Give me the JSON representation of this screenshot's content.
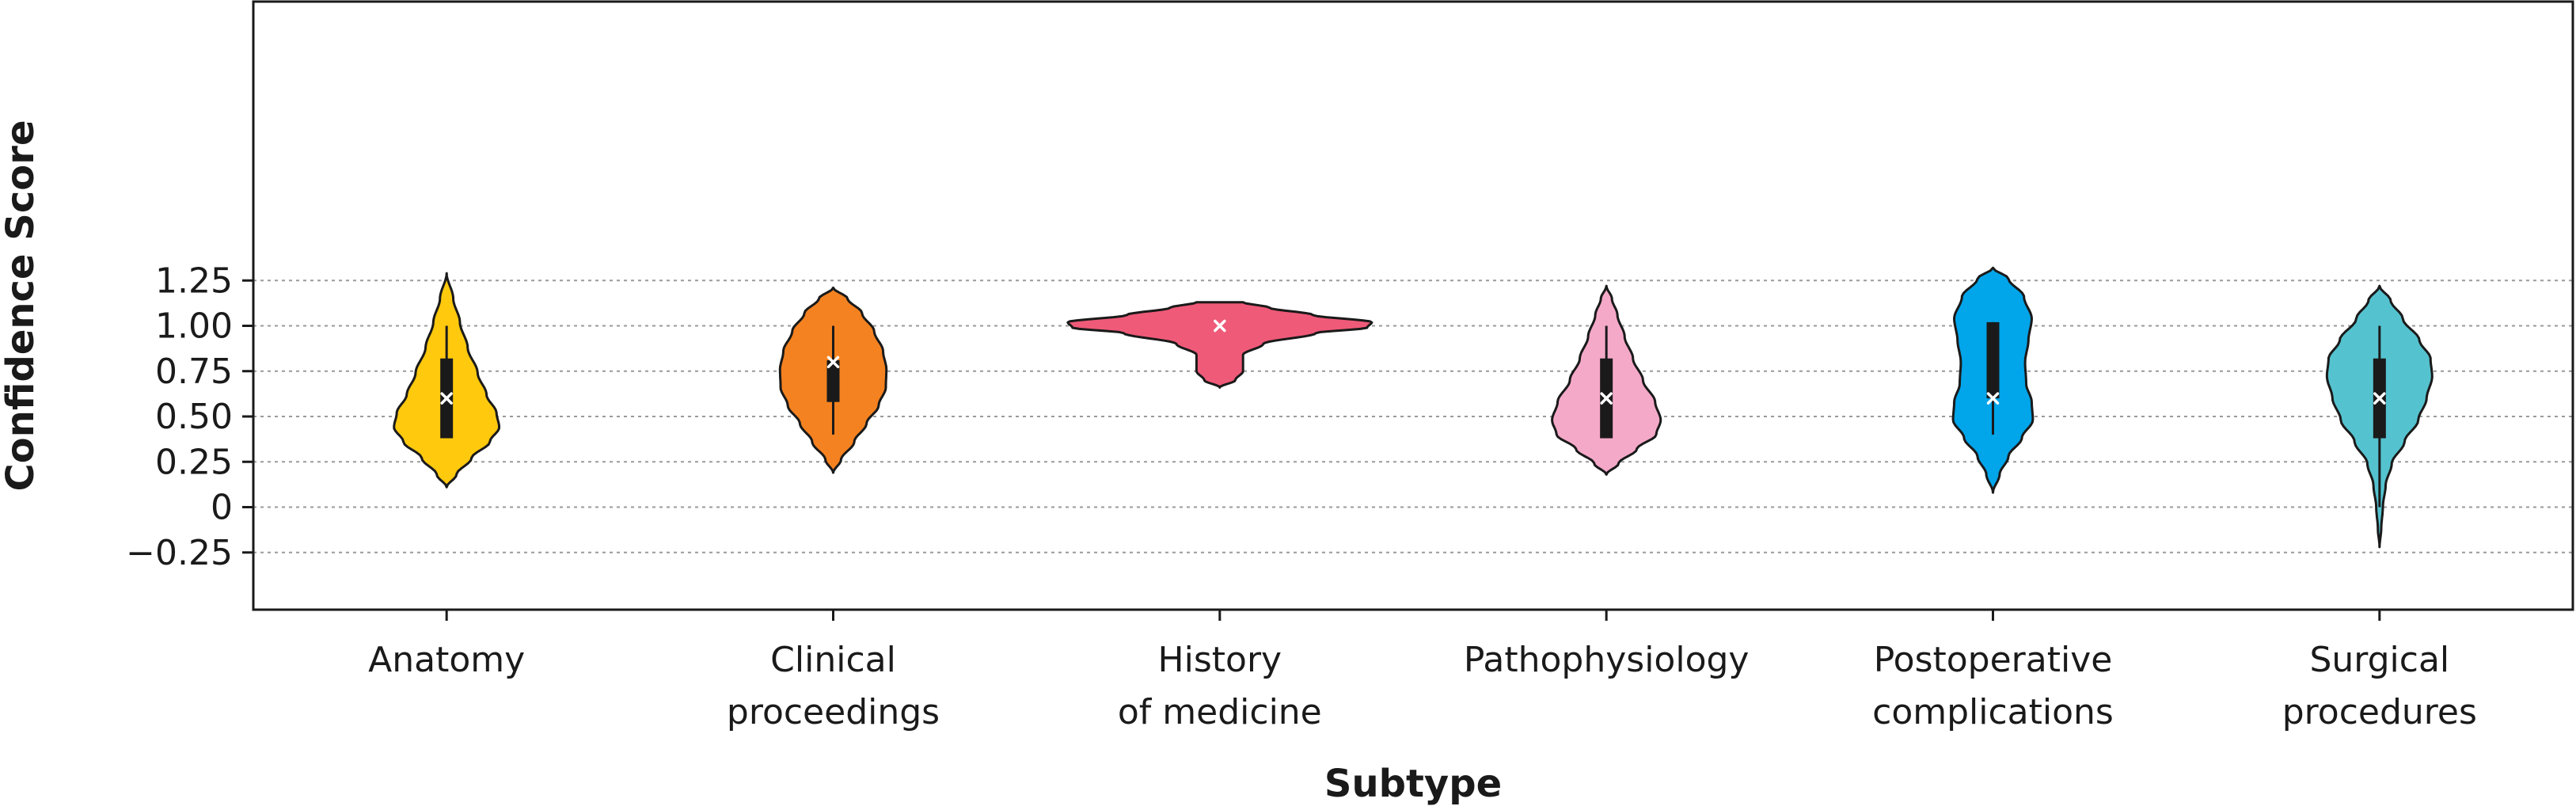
{
  "chart_data": {
    "type": "violin",
    "xlabel": "Subtype",
    "ylabel": "Confidence Score",
    "ylim": [
      -0.28,
      1.38
    ],
    "yticks": [
      -0.25,
      0,
      0.25,
      0.5,
      0.75,
      1.0,
      1.25
    ],
    "ytick_labels": [
      "−0.25",
      "0",
      "0.25",
      "0.50",
      "0.75",
      "1.00",
      "1.25"
    ],
    "grid": "horizontal dashed",
    "categories": [
      {
        "label_lines": [
          "Anatomy"
        ],
        "color": "#FFC90E",
        "kde_min": 0.11,
        "kde_max": 1.29,
        "density": [
          [
            0.11,
            0.0
          ],
          [
            0.18,
            0.18
          ],
          [
            0.27,
            0.45
          ],
          [
            0.36,
            0.78
          ],
          [
            0.44,
            0.95
          ],
          [
            0.52,
            0.9
          ],
          [
            0.62,
            0.72
          ],
          [
            0.74,
            0.56
          ],
          [
            0.88,
            0.38
          ],
          [
            1.02,
            0.24
          ],
          [
            1.15,
            0.12
          ],
          [
            1.29,
            0.0
          ]
        ],
        "q1": 0.38,
        "q3": 0.82,
        "whisker_low": 0.38,
        "whisker_high": 1.0,
        "median": 0.6
      },
      {
        "label_lines": [
          "Clinical",
          "proceedings"
        ],
        "color": "#F58220",
        "kde_min": 0.19,
        "kde_max": 1.21,
        "density": [
          [
            0.19,
            0.0
          ],
          [
            0.26,
            0.14
          ],
          [
            0.36,
            0.38
          ],
          [
            0.46,
            0.6
          ],
          [
            0.56,
            0.82
          ],
          [
            0.66,
            0.95
          ],
          [
            0.76,
            0.96
          ],
          [
            0.86,
            0.9
          ],
          [
            0.97,
            0.74
          ],
          [
            1.07,
            0.52
          ],
          [
            1.15,
            0.26
          ],
          [
            1.21,
            0.0
          ]
        ],
        "q1": 0.58,
        "q3": 0.81,
        "whisker_low": 0.4,
        "whisker_high": 1.0,
        "median": 0.8
      },
      {
        "label_lines": [
          "History",
          "of medicine"
        ],
        "color": "#EF5A78",
        "kde_min": 0.66,
        "kde_max": 1.13,
        "density": [
          [
            0.66,
            0.0
          ],
          [
            0.7,
            0.1
          ],
          [
            0.75,
            0.15
          ],
          [
            0.79,
            0.15
          ],
          [
            0.84,
            0.15
          ],
          [
            0.9,
            0.28
          ],
          [
            0.96,
            0.62
          ],
          [
            0.99,
            0.95
          ],
          [
            1.02,
            0.98
          ],
          [
            1.06,
            0.6
          ],
          [
            1.1,
            0.32
          ],
          [
            1.13,
            0.15
          ]
        ],
        "cap_top": true,
        "q1": 1.0,
        "q3": 1.0,
        "whisker_low": 1.0,
        "whisker_high": 1.0,
        "median": 1.0
      },
      {
        "label_lines": [
          "Pathophysiology"
        ],
        "color": "#F5A9C8",
        "kde_min": 0.18,
        "kde_max": 1.22,
        "density": [
          [
            0.18,
            0.0
          ],
          [
            0.24,
            0.22
          ],
          [
            0.32,
            0.55
          ],
          [
            0.4,
            0.9
          ],
          [
            0.48,
            0.98
          ],
          [
            0.58,
            0.88
          ],
          [
            0.7,
            0.66
          ],
          [
            0.82,
            0.48
          ],
          [
            0.94,
            0.33
          ],
          [
            1.06,
            0.2
          ],
          [
            1.15,
            0.1
          ],
          [
            1.22,
            0.0
          ]
        ],
        "q1": 0.38,
        "q3": 0.82,
        "whisker_low": 0.38,
        "whisker_high": 1.0,
        "median": 0.6
      },
      {
        "label_lines": [
          "Postoperative",
          "complications"
        ],
        "color": "#00A5EA",
        "kde_min": 0.08,
        "kde_max": 1.32,
        "density": [
          [
            0.08,
            0.0
          ],
          [
            0.18,
            0.12
          ],
          [
            0.28,
            0.28
          ],
          [
            0.38,
            0.52
          ],
          [
            0.48,
            0.72
          ],
          [
            0.58,
            0.7
          ],
          [
            0.68,
            0.6
          ],
          [
            0.8,
            0.58
          ],
          [
            0.92,
            0.64
          ],
          [
            1.04,
            0.7
          ],
          [
            1.16,
            0.56
          ],
          [
            1.26,
            0.28
          ],
          [
            1.32,
            0.0
          ]
        ],
        "q1": 0.6,
        "q3": 1.02,
        "whisker_low": 0.4,
        "whisker_high": 1.02,
        "median": 0.6
      },
      {
        "label_lines": [
          "Surgical",
          "procedures"
        ],
        "color": "#55C3CF",
        "kde_min": -0.22,
        "kde_max": 1.22,
        "density": [
          [
            -0.22,
            0.0
          ],
          [
            -0.12,
            0.03
          ],
          [
            0.0,
            0.06
          ],
          [
            0.12,
            0.11
          ],
          [
            0.24,
            0.22
          ],
          [
            0.36,
            0.45
          ],
          [
            0.48,
            0.7
          ],
          [
            0.6,
            0.85
          ],
          [
            0.72,
            0.95
          ],
          [
            0.82,
            0.92
          ],
          [
            0.92,
            0.72
          ],
          [
            1.04,
            0.42
          ],
          [
            1.14,
            0.2
          ],
          [
            1.22,
            0.0
          ]
        ],
        "q1": 0.38,
        "q3": 0.82,
        "whisker_low": 0.0,
        "whisker_high": 1.0,
        "median": 0.6
      }
    ]
  }
}
